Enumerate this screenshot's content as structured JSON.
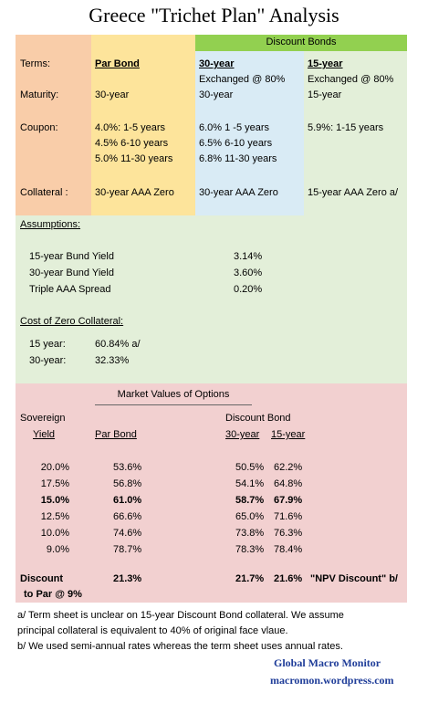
{
  "title": "Greece  \"Trichet Plan\" Analysis",
  "header": {
    "discount_bonds": "Discount Bonds",
    "terms_label": "Terms:",
    "par_bond": "Par Bond",
    "y30": "30-year",
    "y15": "15-year",
    "exchanged30": "Exchanged @ 80%",
    "exchanged15": "Exchanged @ 80%"
  },
  "terms": {
    "maturity_label": "Maturity:",
    "maturity_par": "30-year",
    "maturity_30": "30-year",
    "maturity_15": "15-year",
    "coupon_label": "Coupon:",
    "coupon_par": [
      "4.0%:  1-5 years",
      "4.5%   6-10 years",
      "5.0%   11-30 years"
    ],
    "coupon_30": [
      "6.0%  1 -5 years",
      "6.5%  6-10 years",
      "6.8%  11-30 years"
    ],
    "coupon_15": "5.9%:  1-15 years",
    "collateral_label": "Collateral :",
    "collateral_par": "30-year AAA Zero",
    "collateral_30": "30-year AAA Zero",
    "collateral_15": "15-year AAA Zero a/"
  },
  "assumptions": {
    "heading": "Assumptions:",
    "rows": [
      {
        "label": "15-year Bund Yield",
        "value": "3.14%"
      },
      {
        "label": "30-year Bund Yield",
        "value": "3.60%"
      },
      {
        "label": "Triple AAA Spread",
        "value": "0.20%"
      }
    ],
    "cost_heading": "Cost of Zero Collateral:",
    "cost_rows": [
      {
        "label": "15 year:",
        "value": "60.84%  a/"
      },
      {
        "label": "30-year:",
        "value": "32.33%"
      }
    ]
  },
  "market": {
    "heading": "Market Values of Options",
    "sovereign": "Sovereign",
    "yield": "Yield",
    "par_bond": "Par Bond",
    "discount_bond": "Discount Bond",
    "y30": "30-year",
    "y15": "15-year",
    "rows": [
      {
        "yield": "20.0%",
        "par": "53.6%",
        "d30": "50.5%",
        "d15": "62.2%",
        "bold": false
      },
      {
        "yield": "17.5%",
        "par": "56.8%",
        "d30": "54.1%",
        "d15": "64.8%",
        "bold": false
      },
      {
        "yield": "15.0%",
        "par": "61.0%",
        "d30": "58.7%",
        "d15": "67.9%",
        "bold": true
      },
      {
        "yield": "12.5%",
        "par": "66.6%",
        "d30": "65.0%",
        "d15": "71.6%",
        "bold": false
      },
      {
        "yield": "10.0%",
        "par": "74.6%",
        "d30": "73.8%",
        "d15": "76.3%",
        "bold": false
      },
      {
        "yield": "9.0%",
        "par": "78.7%",
        "d30": "78.3%",
        "d15": "78.4%",
        "bold": false
      }
    ],
    "discount_label": "Discount",
    "discount_sub": "to Par @ 9%",
    "discount_par": "21.3%",
    "discount_30": "21.7%",
    "discount_15": "21.6%",
    "npv_note": "\"NPV Discount\" b/"
  },
  "notes": {
    "a_line1": "a/ Term sheet is unclear on 15-year Discount Bond collateral.  We assume",
    "a_line2": "principal collateral is equivalent to 40% of original face vlaue.",
    "b_line": "b/ We used semi-annual rates whereas the term sheet uses annual rates."
  },
  "branding": {
    "name": "Global Macro Monitor",
    "url": "macromon.wordpress.com"
  },
  "colors": {
    "orange": "#f9cda9",
    "yellow": "#fde49b",
    "blue": "#d9ebf5",
    "green": "#e3efd9",
    "green_header": "#92d050",
    "pink": "#f2d0d0"
  }
}
